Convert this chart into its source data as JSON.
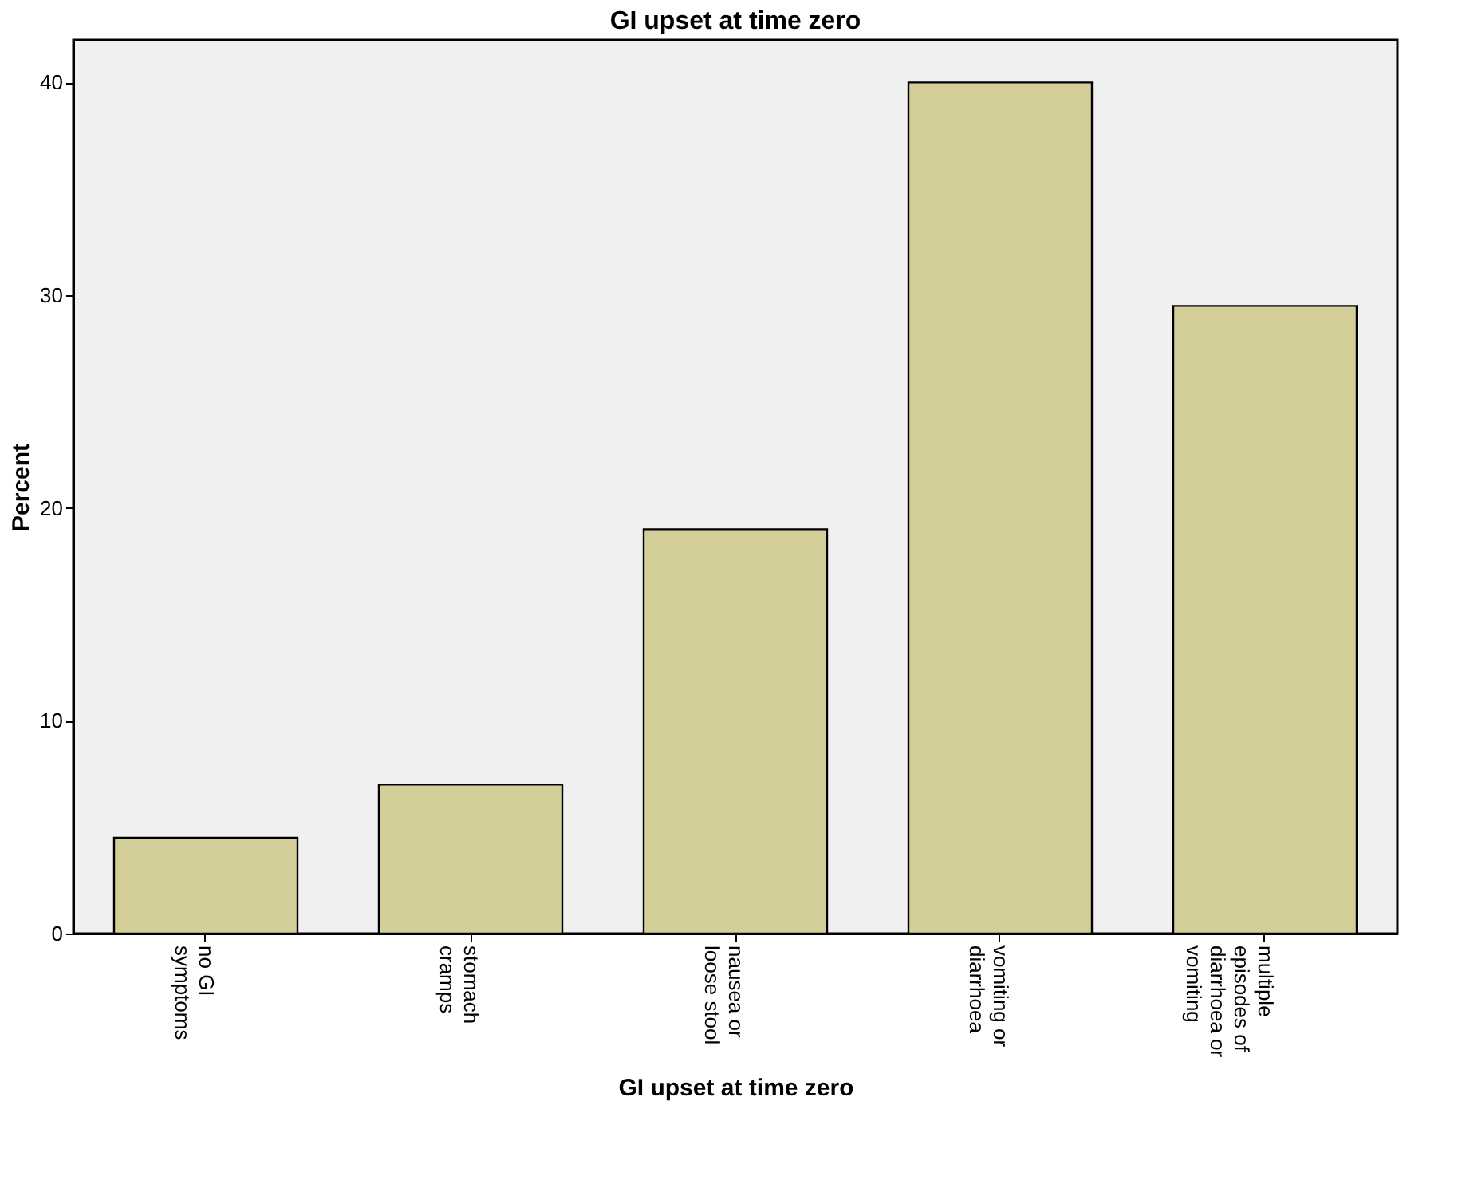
{
  "chart_data": {
    "type": "bar",
    "title": "GI upset at time zero",
    "xlabel": "GI upset at time zero",
    "ylabel": "Percent",
    "categories": [
      "no GI symptoms",
      "stomach cramps",
      "nausea or loose stool",
      "vomiting or diarrhoea",
      "multiple episodes of diarrhoea or vomiting"
    ],
    "values": [
      4.5,
      7.0,
      19.0,
      40.0,
      29.5
    ],
    "color": "#d3ce97",
    "ylim": [
      0,
      42
    ],
    "yticks": [
      0,
      10,
      20,
      30,
      40
    ],
    "grid": false
  }
}
